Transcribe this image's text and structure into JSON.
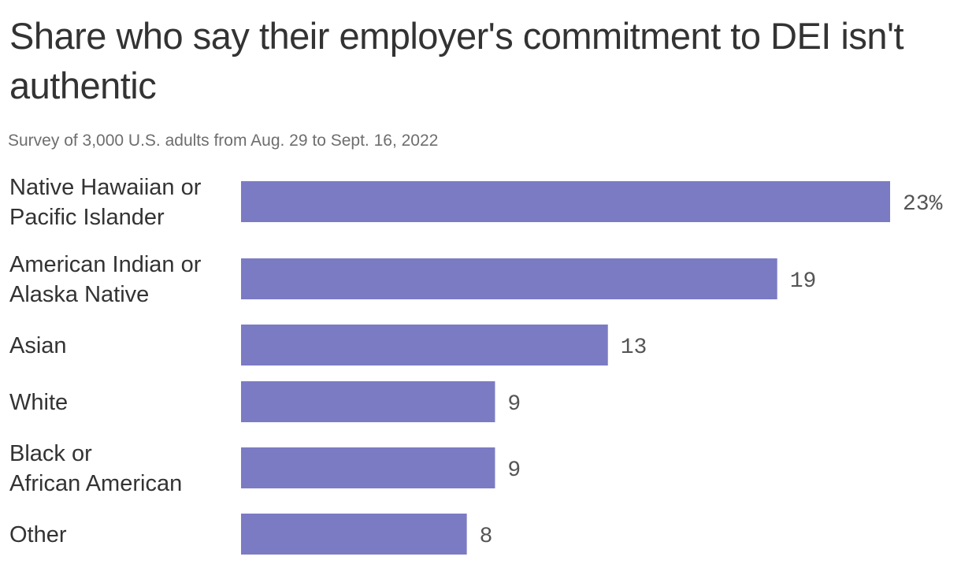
{
  "title": "Share who say their employer's commitment to DEI isn't authentic",
  "subtitle": "Survey of 3,000 U.S. adults from Aug. 29 to Sept. 16, 2022",
  "chart_data": {
    "type": "bar",
    "orientation": "horizontal",
    "categories": [
      [
        "Native Hawaiian or",
        "Pacific Islander"
      ],
      [
        "American Indian or",
        "Alaska Native"
      ],
      [
        "Asian"
      ],
      [
        "White"
      ],
      [
        "Black or",
        "African American"
      ],
      [
        "Other"
      ]
    ],
    "values": [
      23,
      19,
      13,
      9,
      9,
      8
    ],
    "value_labels": [
      "23%",
      "19",
      "13",
      "9",
      "9",
      "8"
    ],
    "unit": "%",
    "bar_color": "#7b7bc4",
    "grid": false,
    "legend": "none"
  }
}
